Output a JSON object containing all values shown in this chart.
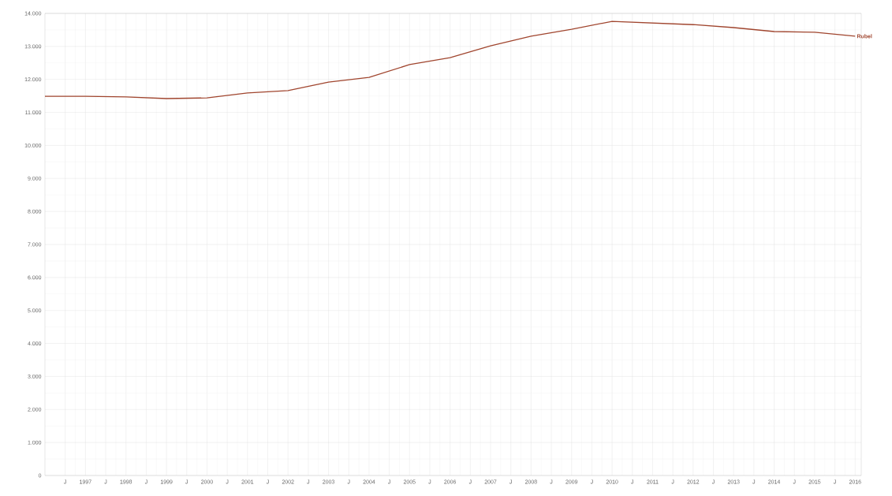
{
  "chart_data": {
    "type": "line",
    "x": [
      1996,
      1997,
      1998,
      1999,
      2000,
      2001,
      2002,
      2003,
      2004,
      2005,
      2006,
      2007,
      2008,
      2009,
      2010,
      2011,
      2012,
      2013,
      2014,
      2015,
      2016
    ],
    "series": [
      {
        "name": "Rubel",
        "color": "#a0452e",
        "values": [
          11490,
          11490,
          11470,
          11420,
          11440,
          11590,
          11660,
          11920,
          12060,
          12450,
          12660,
          13020,
          13310,
          13520,
          13760,
          13710,
          13660,
          13570,
          13450,
          13430,
          13310
        ]
      }
    ],
    "xlim": [
      1996,
      2016.15
    ],
    "xticks": [
      {
        "value": 1996.5,
        "label": "J"
      },
      1997,
      {
        "value": 1997.5,
        "label": "J"
      },
      1998,
      {
        "value": 1998.5,
        "label": "J"
      },
      1999,
      {
        "value": 1999.5,
        "label": "J"
      },
      2000,
      {
        "value": 2000.5,
        "label": "J"
      },
      2001,
      {
        "value": 2001.5,
        "label": "J"
      },
      2002,
      {
        "value": 2002.5,
        "label": "J"
      },
      2003,
      {
        "value": 2003.5,
        "label": "J"
      },
      2004,
      {
        "value": 2004.5,
        "label": "J"
      },
      2005,
      {
        "value": 2005.5,
        "label": "J"
      },
      2006,
      {
        "value": 2006.5,
        "label": "J"
      },
      2007,
      {
        "value": 2007.5,
        "label": "J"
      },
      2008,
      {
        "value": 2008.5,
        "label": "J"
      },
      2009,
      {
        "value": 2009.5,
        "label": "J"
      },
      2010,
      {
        "value": 2010.5,
        "label": "J"
      },
      2011,
      {
        "value": 2011.5,
        "label": "J"
      },
      2012,
      {
        "value": 2012.5,
        "label": "J"
      },
      2013,
      {
        "value": 2013.5,
        "label": "J"
      },
      2014,
      {
        "value": 2014.5,
        "label": "J"
      },
      2015,
      {
        "value": 2015.5,
        "label": "J"
      },
      2016
    ],
    "ylim": [
      0,
      14000
    ],
    "yticks": [
      0,
      {
        "value": 1000,
        "label": "1.000"
      },
      {
        "value": 2000,
        "label": "2.000"
      },
      {
        "value": 3000,
        "label": "3.000"
      },
      {
        "value": 4000,
        "label": "4.000"
      },
      {
        "value": 5000,
        "label": "5.000"
      },
      {
        "value": 6000,
        "label": "6.000"
      },
      {
        "value": 7000,
        "label": "7.000"
      },
      {
        "value": 8000,
        "label": "8.000"
      },
      {
        "value": 9000,
        "label": "9.000"
      },
      {
        "value": 10000,
        "label": "10.000"
      },
      {
        "value": 11000,
        "label": "11.000"
      },
      {
        "value": 12000,
        "label": "12.000"
      },
      {
        "value": 13000,
        "label": "13.000"
      },
      {
        "value": 14000,
        "label": "14.000"
      }
    ],
    "grid": true,
    "legend": false,
    "marker": "none",
    "line_style": "solid"
  }
}
